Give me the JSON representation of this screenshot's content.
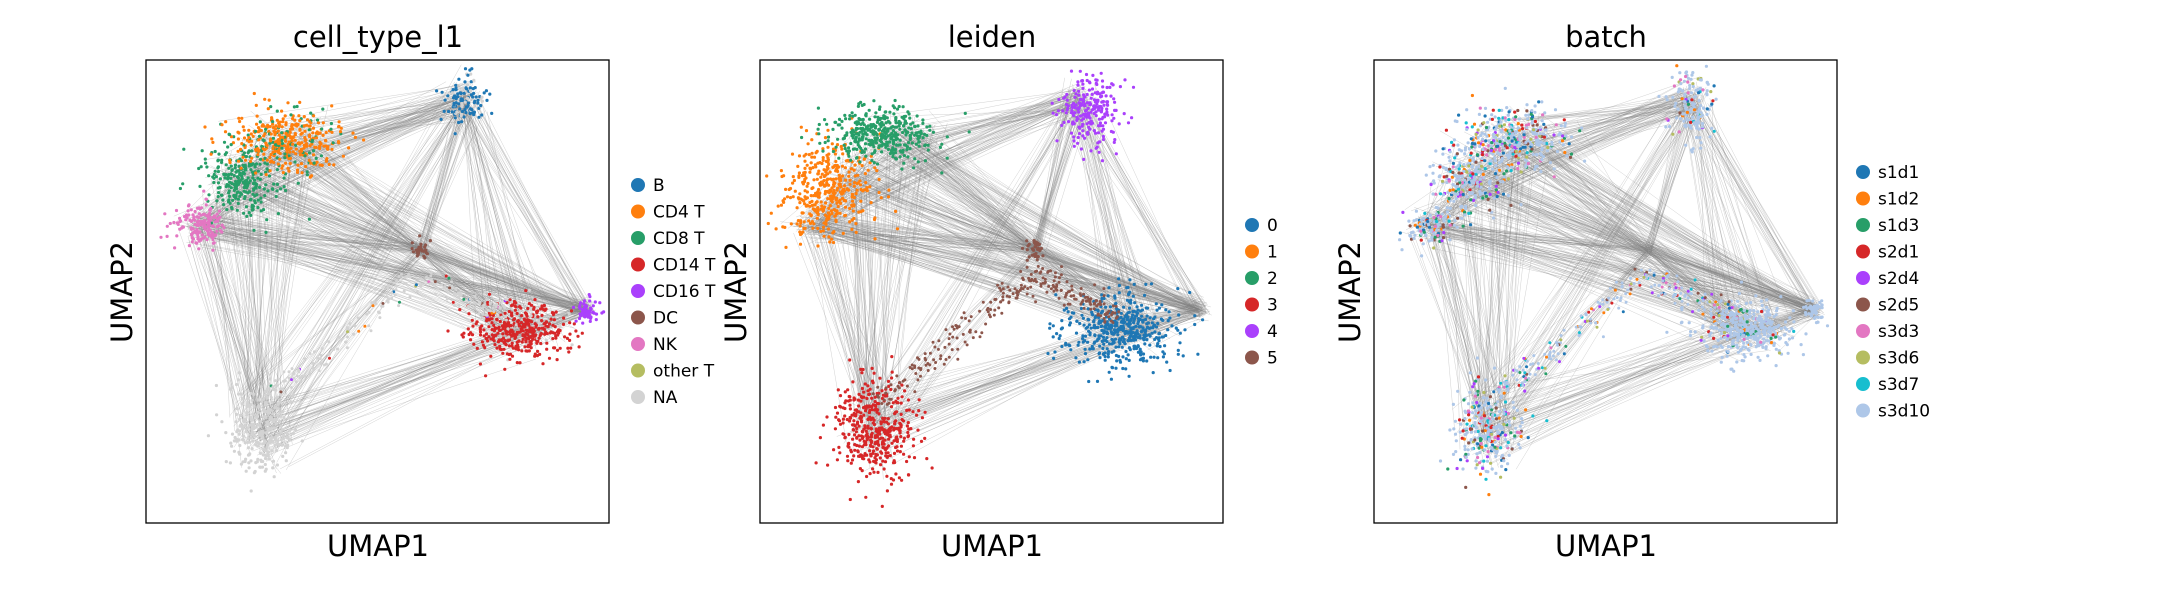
{
  "chart_data": [
    {
      "type": "scatter",
      "title": "cell_type_l1",
      "xlabel": "UMAP1",
      "ylabel": "UMAP2",
      "grid": false,
      "legend_position": "right",
      "series": [
        {
          "name": "B",
          "color": "#1f77b4"
        },
        {
          "name": "CD4 T",
          "color": "#ff7f0e"
        },
        {
          "name": "CD8 T",
          "color": "#279e68"
        },
        {
          "name": "CD14 T",
          "color": "#d62728"
        },
        {
          "name": "CD16 T",
          "color": "#aa40fc"
        },
        {
          "name": "DC",
          "color": "#8c564b"
        },
        {
          "name": "NK",
          "color": "#e377c2"
        },
        {
          "name": "other T",
          "color": "#b5bd61"
        },
        {
          "name": "NA",
          "color": "#d3d3d3"
        }
      ]
    },
    {
      "type": "scatter",
      "title": "leiden",
      "xlabel": "UMAP1",
      "ylabel": "UMAP2",
      "grid": false,
      "legend_position": "right",
      "series": [
        {
          "name": "0",
          "color": "#1f77b4"
        },
        {
          "name": "1",
          "color": "#ff7f0e"
        },
        {
          "name": "2",
          "color": "#279e68"
        },
        {
          "name": "3",
          "color": "#d62728"
        },
        {
          "name": "4",
          "color": "#aa40fc"
        },
        {
          "name": "5",
          "color": "#8c564b"
        }
      ]
    },
    {
      "type": "scatter",
      "title": "batch",
      "xlabel": "UMAP1",
      "ylabel": "UMAP2",
      "grid": false,
      "legend_position": "right",
      "series": [
        {
          "name": "s1d1",
          "color": "#1f77b4"
        },
        {
          "name": "s1d2",
          "color": "#ff7f0e"
        },
        {
          "name": "s1d3",
          "color": "#279e68"
        },
        {
          "name": "s2d1",
          "color": "#d62728"
        },
        {
          "name": "s2d4",
          "color": "#aa40fc"
        },
        {
          "name": "s2d5",
          "color": "#8c564b"
        },
        {
          "name": "s3d3",
          "color": "#e377c2"
        },
        {
          "name": "s3d6",
          "color": "#b5bd61"
        },
        {
          "name": "s3d7",
          "color": "#17becf"
        },
        {
          "name": "s3d10",
          "color": "#aec7e8"
        }
      ]
    }
  ],
  "edge_color": "#808080"
}
